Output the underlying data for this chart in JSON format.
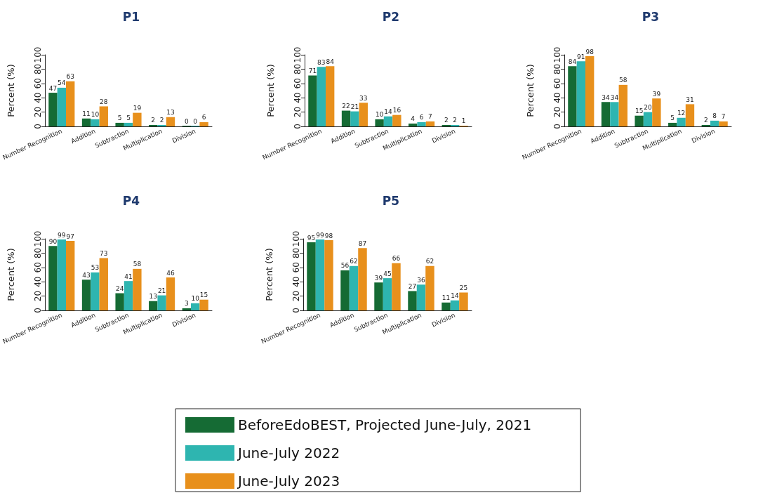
{
  "chart_data": [
    {
      "type": "bar",
      "title": "P1",
      "ylabel": "Percent (%)",
      "categories": [
        "Number Recognition",
        "Addition",
        "Subtraction",
        "Multiplication",
        "Division"
      ],
      "ylim": [
        0,
        100
      ],
      "yticks": [
        0,
        20,
        40,
        60,
        80,
        100
      ],
      "data_labels": true,
      "series": [
        {
          "color": "#156b34",
          "values": [
            47,
            11,
            5,
            2,
            0
          ]
        },
        {
          "color": "#2eb5b0",
          "values": [
            54,
            10,
            5,
            2,
            0
          ]
        },
        {
          "color": "#e8901c",
          "values": [
            63,
            28,
            19,
            13,
            6
          ]
        }
      ]
    },
    {
      "type": "bar",
      "title": "P2",
      "ylabel": "Percent (%)",
      "categories": [
        "Number Recognition",
        "Addition",
        "Subtraction",
        "Multiplication",
        "Division"
      ],
      "ylim": [
        0,
        100
      ],
      "yticks": [
        0,
        20,
        40,
        60,
        80,
        100
      ],
      "data_labels": true,
      "series": [
        {
          "color": "#156b34",
          "values": [
            71,
            22,
            10,
            4,
            2
          ]
        },
        {
          "color": "#2eb5b0",
          "values": [
            83,
            21,
            14,
            6,
            2
          ]
        },
        {
          "color": "#e8901c",
          "values": [
            84,
            33,
            16,
            7,
            1
          ]
        }
      ]
    },
    {
      "type": "bar",
      "title": "P3",
      "ylabel": "Percent (%)",
      "categories": [
        "Number Recognition",
        "Addition",
        "Subtraction",
        "Multiplication",
        "Division"
      ],
      "ylim": [
        0,
        100
      ],
      "yticks": [
        0,
        20,
        40,
        60,
        80,
        100
      ],
      "data_labels": true,
      "series": [
        {
          "color": "#156b34",
          "values": [
            84,
            34,
            15,
            5,
            2
          ]
        },
        {
          "color": "#2eb5b0",
          "values": [
            91,
            34,
            20,
            12,
            8
          ]
        },
        {
          "color": "#e8901c",
          "values": [
            98,
            58,
            39,
            31,
            7
          ]
        }
      ]
    },
    {
      "type": "bar",
      "title": "P4",
      "ylabel": "Percent (%)",
      "categories": [
        "Number Recognition",
        "Addition",
        "Subtraction",
        "Multiplication",
        "Division"
      ],
      "ylim": [
        0,
        100
      ],
      "yticks": [
        0,
        20,
        40,
        60,
        80,
        100
      ],
      "data_labels": true,
      "series": [
        {
          "color": "#156b34",
          "values": [
            90,
            43,
            24,
            13,
            3
          ]
        },
        {
          "color": "#2eb5b0",
          "values": [
            99,
            53,
            41,
            21,
            10
          ]
        },
        {
          "color": "#e8901c",
          "values": [
            97,
            73,
            58,
            46,
            15
          ]
        }
      ]
    },
    {
      "type": "bar",
      "title": "P5",
      "ylabel": "Percent (%)",
      "categories": [
        "Number Recognition",
        "Addition",
        "Subtraction",
        "Multiplication",
        "Division"
      ],
      "ylim": [
        0,
        100
      ],
      "yticks": [
        0,
        20,
        40,
        60,
        80,
        100
      ],
      "data_labels": true,
      "legend": "bottom",
      "series": [
        {
          "name": "BeforeEdoBEST, Projected June-July, 2021",
          "color": "#156b34",
          "values": [
            95,
            56,
            39,
            27,
            11
          ]
        },
        {
          "name": "June-July 2022",
          "color": "#2eb5b0",
          "values": [
            99,
            62,
            45,
            36,
            14
          ]
        },
        {
          "name": "June-July 2023",
          "color": "#e8901c",
          "values": [
            98,
            87,
            66,
            62,
            25
          ]
        }
      ]
    }
  ]
}
